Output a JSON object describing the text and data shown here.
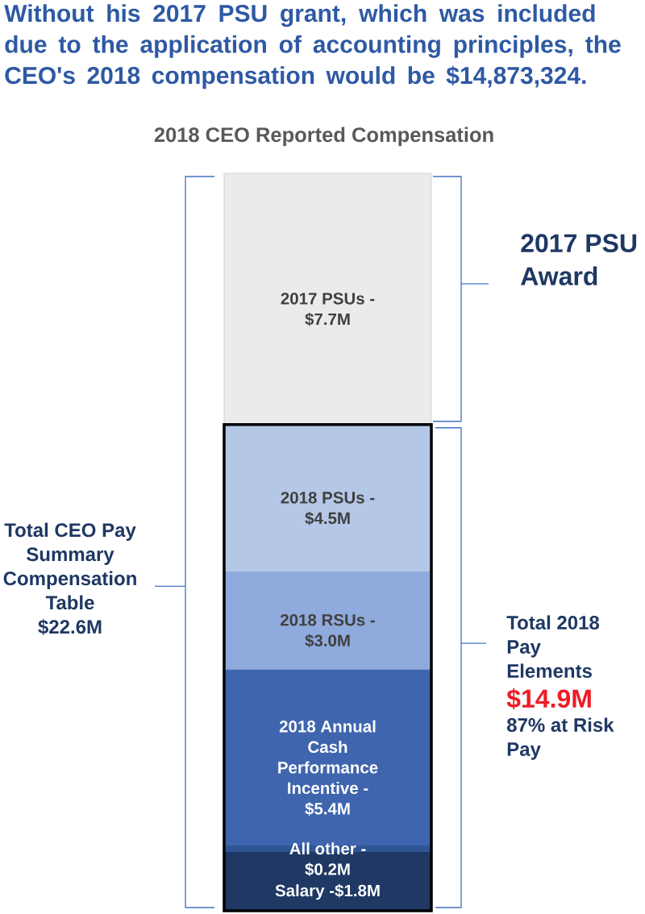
{
  "chart_data": {
    "type": "bar",
    "title": "Without his 2017 PSU grant, which was included due to the application of accounting principles, the CEO's 2018 compensation would be $14,873,324.",
    "subtitle": "2018 CEO Reported Compensation",
    "categories": [
      null
    ],
    "stacked": true,
    "tick_labels": false,
    "series": [
      {
        "name": "Salary -",
        "color": "#203864",
        "values": [
          1.8
        ],
        "value_labels": [
          "$1.8M"
        ]
      },
      {
        "name": "All other -",
        "color": "#2f5597",
        "values": [
          0.2
        ],
        "value_labels": [
          "$0.2M"
        ]
      },
      {
        "name": "2018 Annual Cash Performance Incentive -",
        "color": "#3f65ae",
        "values": [
          5.4
        ],
        "value_labels": [
          "$5.4M"
        ]
      },
      {
        "name": "2018 RSUs -",
        "color": "#8faadc",
        "values": [
          3.0
        ],
        "value_labels": [
          "$3.0M"
        ]
      },
      {
        "name": "2018 PSUs -",
        "color": "#b4c7e7",
        "values": [
          4.5
        ],
        "value_labels": [
          "$4.5M"
        ]
      },
      {
        "name": "2017 PSUs -",
        "color": "#ebebeb",
        "values": [
          7.7
        ],
        "value_labels": [
          "$7.7M"
        ]
      }
    ],
    "annotations": [
      "Total CEO Pay Summary Compensation Table",
      "$22.6M",
      "2017 PSU Award",
      "Total 2018 Pay Elements",
      "$14.9M",
      "87% at Risk Pay"
    ]
  }
}
